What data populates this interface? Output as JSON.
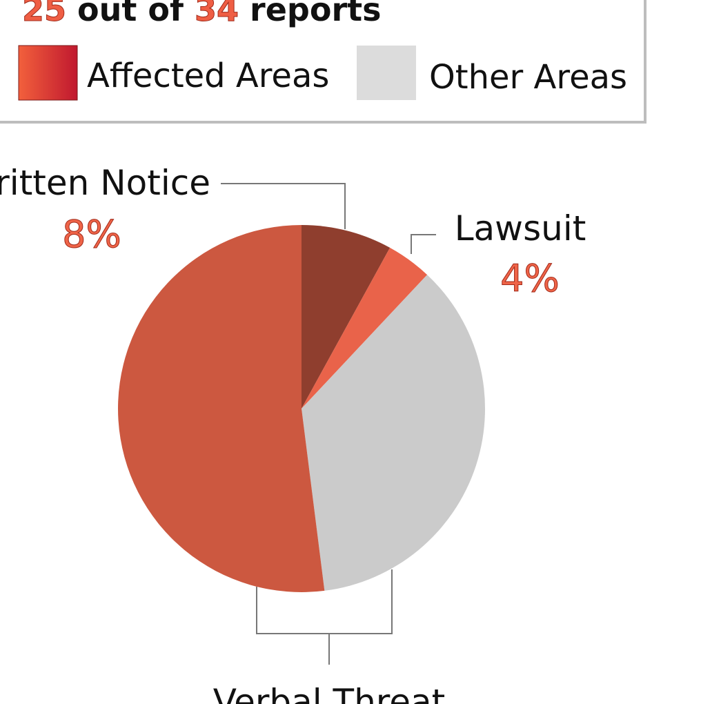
{
  "chart_data": {
    "type": "pie",
    "title_parts": [
      "25",
      " out of ",
      "34",
      " reports"
    ],
    "legend": [
      {
        "name": "Affected Areas",
        "color_start": "#f2603c",
        "color_end": "#c0182f"
      },
      {
        "name": "Other Areas",
        "color": "#dcdcdc"
      }
    ],
    "categories": [
      "Written Notice",
      "Lawsuit",
      null,
      "Verbal Threat"
    ],
    "values": [
      8,
      4,
      36,
      52
    ],
    "value_labels": [
      "8%",
      "4%",
      null,
      null
    ],
    "colors": [
      "#8f3e2e",
      "#e9634a",
      "#cbcbcb",
      "#cc5840"
    ]
  }
}
